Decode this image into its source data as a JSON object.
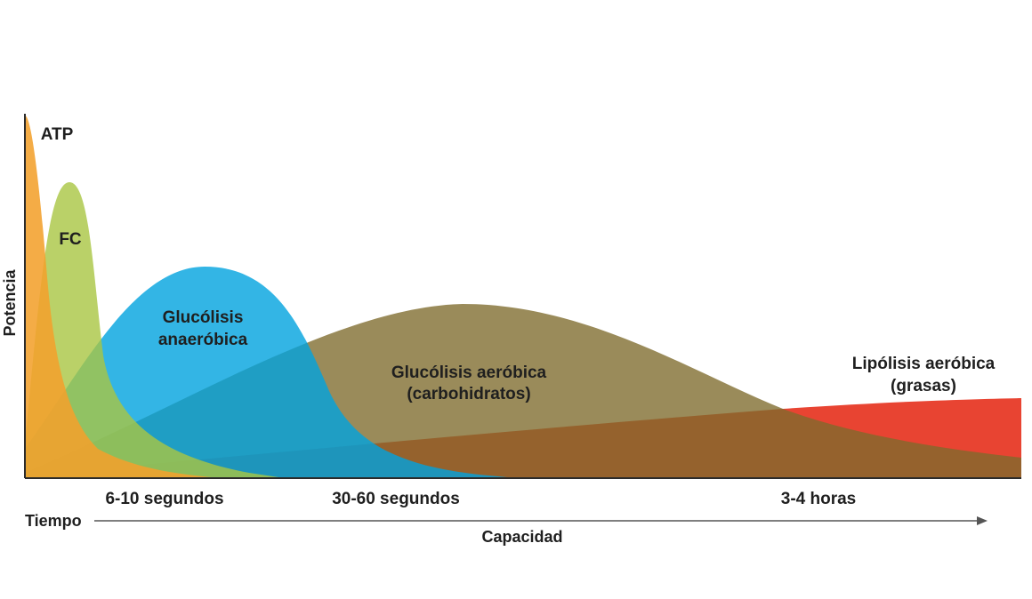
{
  "chart_data": {
    "type": "area",
    "title": "",
    "xlabel": "Capacidad",
    "ylabel": "Potencia",
    "x_start_label": "Tiempo",
    "x_tick_labels": [
      "6-10 segundos",
      "30-60 segundos",
      "3-4 horas"
    ],
    "grid": false,
    "legend": "none",
    "series": [
      {
        "name": "ATP",
        "color": "#f2a12c"
      },
      {
        "name": "FC",
        "color": "#a9c542"
      },
      {
        "name": "Glucólisis anaeróbica",
        "color": "#00a3df"
      },
      {
        "name": "Glucólisis aeróbica (carbohidratos)",
        "color": "#9b8a53"
      },
      {
        "name": "Lipólisis aeróbica (grasas)",
        "color": "#e8402e"
      }
    ],
    "series_label_lines": [
      [
        "ATP"
      ],
      [
        "FC"
      ],
      [
        "Glucólisis",
        "anaeróbica"
      ],
      [
        "Glucólisis aeróbica",
        "(carbohidratos)"
      ],
      [
        "Lipólisis aeróbica",
        "(grasas)"
      ]
    ]
  }
}
